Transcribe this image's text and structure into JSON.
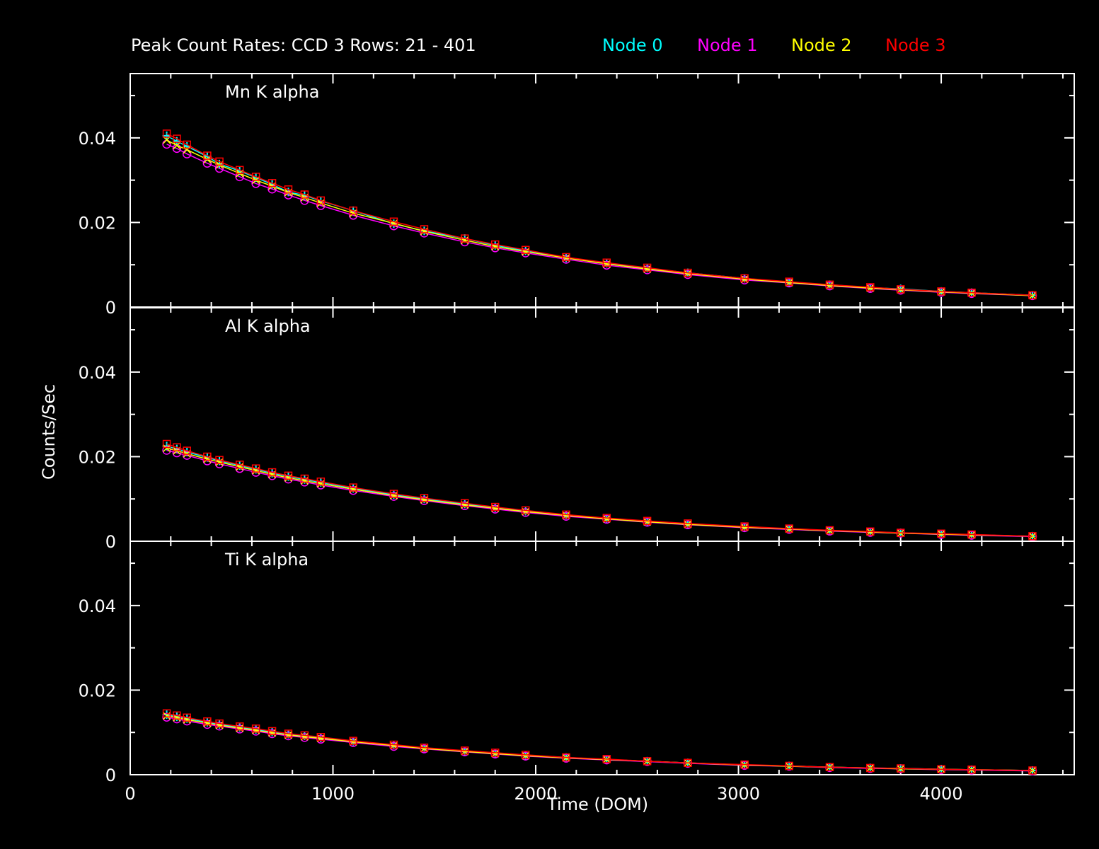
{
  "chart_data": {
    "type": "scatter",
    "title": "Peak Count Rates: CCD 3 Rows: 21 - 401",
    "xlabel": "Time (DOM)",
    "ylabel": "Counts/Sec",
    "xlim": [
      0,
      4656
    ],
    "ylim": [
      0,
      0.0552
    ],
    "x_ticks": [
      "0",
      "1000",
      "2000",
      "3000",
      "4000"
    ],
    "y_ticks": [
      "0",
      "0.02",
      "0.04"
    ],
    "legend_placement": "top",
    "legend": [
      {
        "name": "Node 0",
        "color": "#00ffff",
        "marker": "plus"
      },
      {
        "name": "Node 1",
        "color": "#ff00ff",
        "marker": "circle"
      },
      {
        "name": "Node 2",
        "color": "#ffff00",
        "marker": "x"
      },
      {
        "name": "Node 3",
        "color": "#ff0000",
        "marker": "square"
      }
    ],
    "x": [
      180,
      230,
      280,
      380,
      440,
      540,
      620,
      700,
      780,
      860,
      940,
      1100,
      1300,
      1450,
      1650,
      1800,
      1950,
      2150,
      2350,
      2550,
      2750,
      3030,
      3250,
      3450,
      3650,
      3800,
      4000,
      4150,
      4450
    ],
    "panels": [
      {
        "label": "Mn K alpha",
        "series": [
          [
            0.0405,
            0.0392,
            0.038,
            0.0356,
            0.0338,
            0.0322,
            0.0306,
            0.029,
            0.0272,
            0.0264,
            0.0251,
            0.0228,
            0.0197,
            0.018,
            0.0162,
            0.0146,
            0.0133,
            0.0116,
            0.0104,
            0.0092,
            0.0081,
            0.0068,
            0.0058,
            0.0053,
            0.0046,
            0.0043,
            0.0037,
            0.0034,
            0.0028
          ],
          [
            0.0385,
            0.0375,
            0.0362,
            0.034,
            0.0328,
            0.0308,
            0.0292,
            0.0279,
            0.0265,
            0.0252,
            0.024,
            0.0217,
            0.0192,
            0.0175,
            0.0154,
            0.014,
            0.0128,
            0.0113,
            0.0099,
            0.0088,
            0.0077,
            0.0064,
            0.0057,
            0.005,
            0.0044,
            0.004,
            0.0035,
            0.0032,
            0.0027
          ],
          [
            0.0395,
            0.0382,
            0.0372,
            0.0349,
            0.0336,
            0.0316,
            0.03,
            0.0286,
            0.0271,
            0.0259,
            0.0246,
            0.0222,
            0.0198,
            0.0179,
            0.0158,
            0.0143,
            0.0131,
            0.0116,
            0.0102,
            0.009,
            0.0079,
            0.0066,
            0.0058,
            0.0051,
            0.0045,
            0.0041,
            0.0036,
            0.0033,
            0.0027
          ],
          [
            0.041,
            0.0398,
            0.0384,
            0.0358,
            0.0344,
            0.0324,
            0.0308,
            0.0293,
            0.0278,
            0.0266,
            0.0252,
            0.0228,
            0.0202,
            0.0184,
            0.0162,
            0.0148,
            0.0135,
            0.0118,
            0.0105,
            0.0093,
            0.0081,
            0.0068,
            0.006,
            0.0053,
            0.0047,
            0.0042,
            0.0037,
            0.0034,
            0.0028
          ]
        ]
      },
      {
        "label": "Al K alpha",
        "series": [
          [
            0.0225,
            0.0218,
            0.0211,
            0.0198,
            0.019,
            0.0179,
            0.017,
            0.0161,
            0.0153,
            0.0146,
            0.0139,
            0.0125,
            0.011,
            0.01,
            0.0088,
            0.0079,
            0.0071,
            0.0062,
            0.0054,
            0.0047,
            0.0041,
            0.0034,
            0.0029,
            0.0025,
            0.0022,
            0.002,
            0.0017,
            0.0015,
            0.0012
          ],
          [
            0.0215,
            0.0209,
            0.0203,
            0.019,
            0.0183,
            0.0172,
            0.0163,
            0.0155,
            0.0147,
            0.014,
            0.0133,
            0.012,
            0.0106,
            0.0096,
            0.0084,
            0.0076,
            0.0068,
            0.0059,
            0.0052,
            0.0045,
            0.0039,
            0.0032,
            0.0028,
            0.0024,
            0.0021,
            0.0019,
            0.0016,
            0.0014,
            0.0011
          ],
          [
            0.022,
            0.0214,
            0.0207,
            0.0194,
            0.0187,
            0.0176,
            0.0167,
            0.0158,
            0.015,
            0.0143,
            0.0136,
            0.0123,
            0.0108,
            0.0098,
            0.0086,
            0.0078,
            0.007,
            0.0061,
            0.0053,
            0.0046,
            0.004,
            0.0033,
            0.0029,
            0.0025,
            0.0022,
            0.0019,
            0.0017,
            0.0015,
            0.0012
          ],
          [
            0.023,
            0.0222,
            0.0214,
            0.02,
            0.0192,
            0.0181,
            0.0172,
            0.0163,
            0.0155,
            0.0148,
            0.0141,
            0.0127,
            0.0112,
            0.0102,
            0.009,
            0.0081,
            0.0073,
            0.0063,
            0.0055,
            0.0048,
            0.0042,
            0.0035,
            0.003,
            0.0026,
            0.0023,
            0.002,
            0.0018,
            0.0016,
            0.0012
          ]
        ]
      },
      {
        "label": "Ti K alpha",
        "series": [
          [
            0.0142,
            0.0137,
            0.0133,
            0.0124,
            0.0119,
            0.0112,
            0.0107,
            0.0101,
            0.0096,
            0.0092,
            0.0087,
            0.0079,
            0.007,
            0.0063,
            0.0056,
            0.0051,
            0.0046,
            0.0041,
            0.0036,
            0.0032,
            0.0028,
            0.0023,
            0.0021,
            0.0018,
            0.0016,
            0.0015,
            0.0013,
            0.0012,
            0.001
          ],
          [
            0.0136,
            0.0132,
            0.0127,
            0.0119,
            0.0115,
            0.0108,
            0.0103,
            0.0097,
            0.0092,
            0.0088,
            0.0084,
            0.0076,
            0.0067,
            0.0061,
            0.0054,
            0.0049,
            0.0044,
            0.0039,
            0.0035,
            0.0031,
            0.0027,
            0.0022,
            0.002,
            0.0017,
            0.0015,
            0.0014,
            0.0012,
            0.0011,
            0.0009
          ],
          [
            0.0139,
            0.0135,
            0.013,
            0.0122,
            0.0117,
            0.011,
            0.0105,
            0.0099,
            0.0094,
            0.009,
            0.0086,
            0.0078,
            0.0069,
            0.0062,
            0.0055,
            0.005,
            0.0045,
            0.004,
            0.0036,
            0.0032,
            0.0028,
            0.0023,
            0.002,
            0.0018,
            0.0016,
            0.0014,
            0.0013,
            0.0012,
            0.001
          ],
          [
            0.0145,
            0.014,
            0.0135,
            0.0126,
            0.0121,
            0.0114,
            0.0109,
            0.0103,
            0.0097,
            0.0093,
            0.0089,
            0.008,
            0.0071,
            0.0064,
            0.0057,
            0.0052,
            0.0047,
            0.0041,
            0.0037,
            0.0032,
            0.0028,
            0.0024,
            0.0021,
            0.0018,
            0.0016,
            0.0015,
            0.0013,
            0.0012,
            0.001
          ]
        ]
      }
    ]
  }
}
